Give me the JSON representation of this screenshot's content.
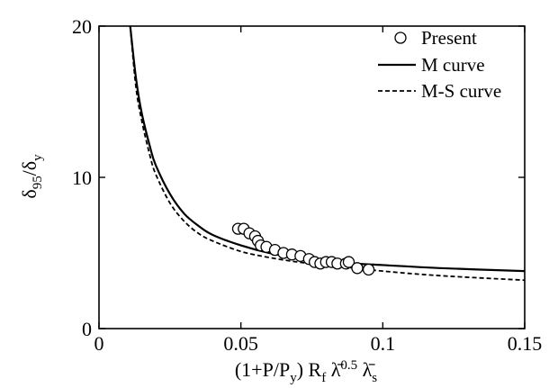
{
  "chart_data": {
    "type": "scatter",
    "title": "",
    "xlabel": "(1+P/Py) Rf λ̄0.5 λ̄s",
    "ylabel": "δ95/δy",
    "xlim": [
      0,
      0.15
    ],
    "ylim": [
      0,
      20
    ],
    "xticks": [
      "0",
      "0.05",
      "0.1",
      "0.15"
    ],
    "yticks": [
      "0",
      "10",
      "20"
    ],
    "grid": false,
    "legend_position": "top-right",
    "series": [
      {
        "name": "Present",
        "kind": "markers",
        "marker": "open-circle",
        "points": [
          [
            0.049,
            6.6
          ],
          [
            0.051,
            6.6
          ],
          [
            0.053,
            6.3
          ],
          [
            0.055,
            6.1
          ],
          [
            0.056,
            5.8
          ],
          [
            0.057,
            5.5
          ],
          [
            0.059,
            5.4
          ],
          [
            0.062,
            5.2
          ],
          [
            0.065,
            5.0
          ],
          [
            0.068,
            4.9
          ],
          [
            0.071,
            4.8
          ],
          [
            0.074,
            4.6
          ],
          [
            0.076,
            4.4
          ],
          [
            0.078,
            4.3
          ],
          [
            0.08,
            4.4
          ],
          [
            0.082,
            4.4
          ],
          [
            0.084,
            4.3
          ],
          [
            0.087,
            4.3
          ],
          [
            0.088,
            4.4
          ],
          [
            0.091,
            4.0
          ],
          [
            0.095,
            3.9
          ]
        ]
      },
      {
        "name": "M curve",
        "kind": "line",
        "style": "solid",
        "points": [
          [
            0.011,
            20.0
          ],
          [
            0.013,
            16.6
          ],
          [
            0.015,
            14.3
          ],
          [
            0.018,
            12.0
          ],
          [
            0.02,
            10.8
          ],
          [
            0.025,
            8.9
          ],
          [
            0.03,
            7.6
          ],
          [
            0.035,
            6.8
          ],
          [
            0.04,
            6.2
          ],
          [
            0.05,
            5.5
          ],
          [
            0.06,
            5.0
          ],
          [
            0.07,
            4.7
          ],
          [
            0.08,
            4.5
          ],
          [
            0.09,
            4.3
          ],
          [
            0.1,
            4.2
          ],
          [
            0.12,
            4.0
          ],
          [
            0.15,
            3.8
          ]
        ]
      },
      {
        "name": "M-S curve",
        "kind": "line",
        "style": "dashed",
        "points": [
          [
            0.011,
            20.0
          ],
          [
            0.013,
            16.0
          ],
          [
            0.015,
            13.8
          ],
          [
            0.018,
            11.4
          ],
          [
            0.02,
            10.2
          ],
          [
            0.025,
            8.3
          ],
          [
            0.03,
            7.1
          ],
          [
            0.035,
            6.3
          ],
          [
            0.04,
            5.8
          ],
          [
            0.05,
            5.1
          ],
          [
            0.06,
            4.7
          ],
          [
            0.07,
            4.4
          ],
          [
            0.08,
            4.2
          ],
          [
            0.09,
            4.0
          ],
          [
            0.1,
            3.8
          ],
          [
            0.12,
            3.5
          ],
          [
            0.15,
            3.2
          ]
        ]
      }
    ]
  }
}
